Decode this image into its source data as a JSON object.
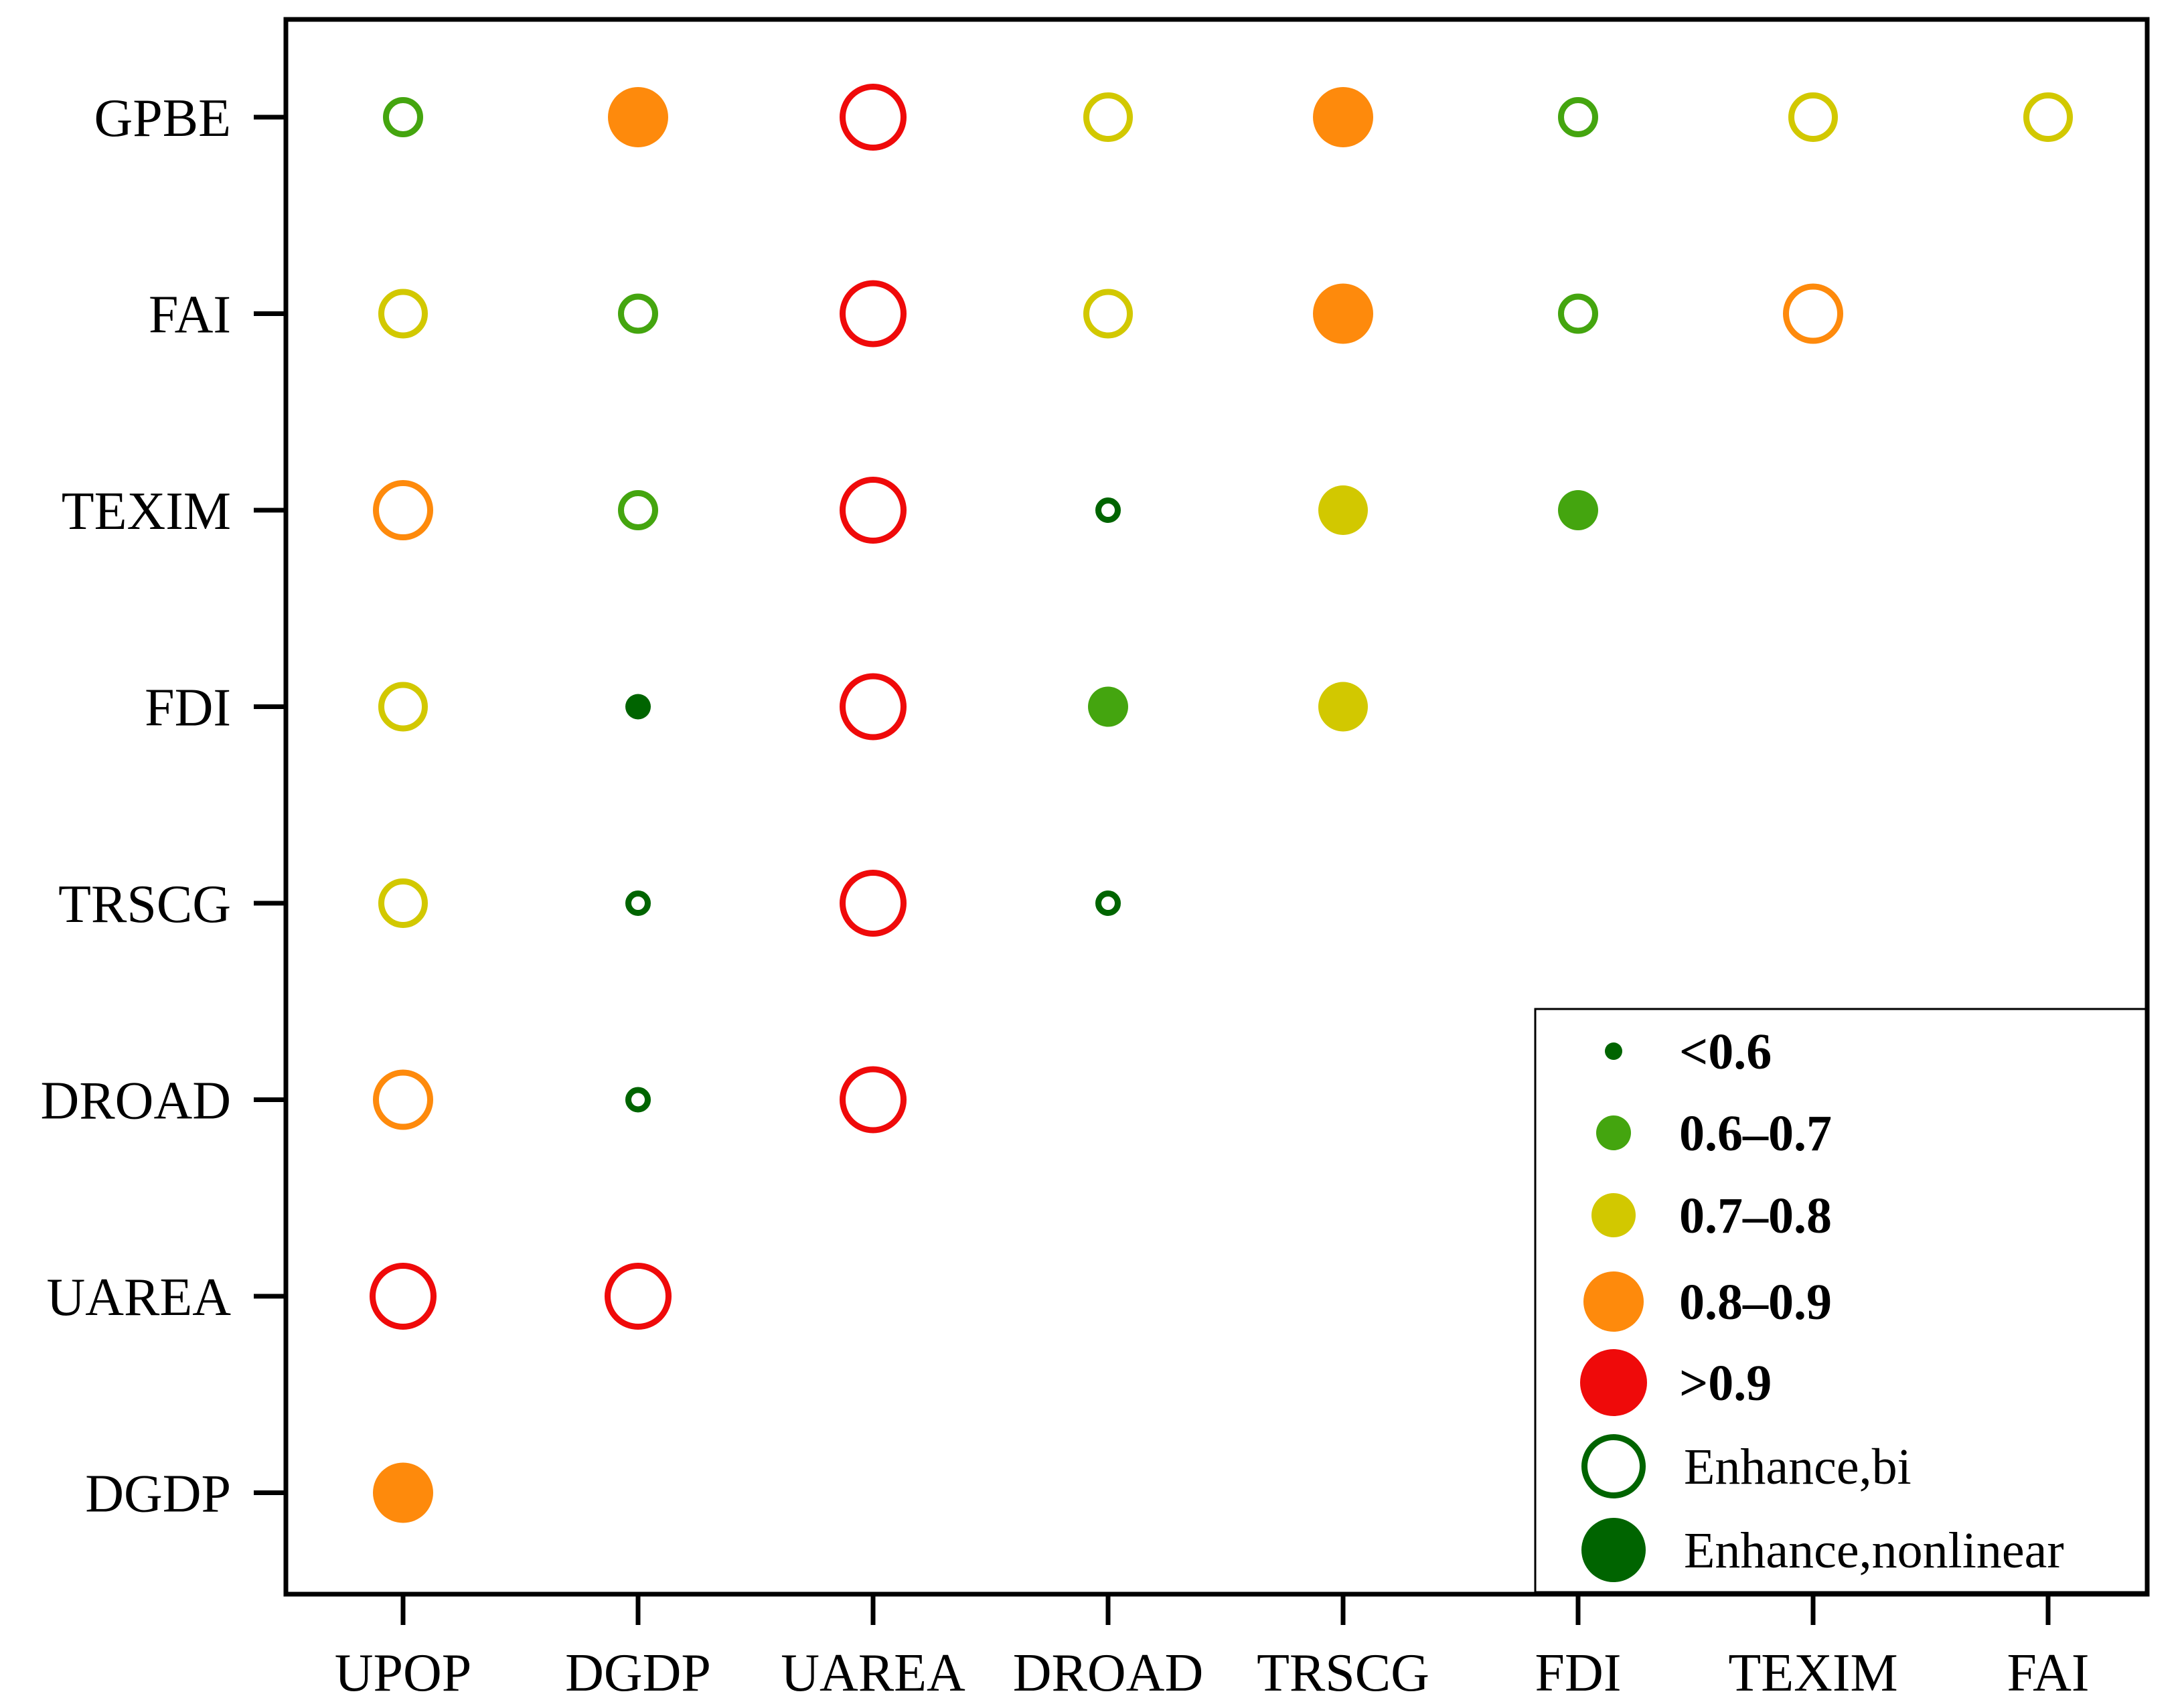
{
  "chart_data": {
    "type": "scatter",
    "x_categories": [
      "UPOP",
      "DGDP",
      "UAREA",
      "DROAD",
      "TRSCG",
      "FDI",
      "TEXIM",
      "FAI"
    ],
    "y_categories": [
      "GPBE",
      "FAI",
      "TEXIM",
      "FDI",
      "TRSCG",
      "DROAD",
      "UAREA",
      "DGDP"
    ],
    "legend": [
      {
        "label": "<0.6",
        "class": "<0.6",
        "color": "#006400",
        "type": "size"
      },
      {
        "label": "0.6–0.7",
        "class": "0.6–0.7",
        "color": "#44a50f",
        "type": "size"
      },
      {
        "label": "0.7–0.8",
        "class": "0.7–0.8",
        "color": "#d2c800",
        "type": "size"
      },
      {
        "label": "0.8–0.9",
        "class": "0.8–0.9",
        "color": "#fe8a0c",
        "type": "size"
      },
      {
        "label": ">0.9",
        "class": ">0.9",
        "color": "#ef0a0a",
        "type": "size"
      },
      {
        "label": "Enhance,bi",
        "type": "hollow",
        "color": "#006400"
      },
      {
        "label": "Enhance,nonlinear",
        "type": "filled",
        "color": "#006400"
      }
    ],
    "points": [
      {
        "x": "UPOP",
        "y": "GPBE",
        "class": "0.6–0.7",
        "enhance": "bi"
      },
      {
        "x": "DGDP",
        "y": "GPBE",
        "class": "0.8–0.9",
        "enhance": "nonlinear"
      },
      {
        "x": "UAREA",
        "y": "GPBE",
        "class": ">0.9",
        "enhance": "bi"
      },
      {
        "x": "DROAD",
        "y": "GPBE",
        "class": "0.7–0.8",
        "enhance": "bi"
      },
      {
        "x": "TRSCG",
        "y": "GPBE",
        "class": "0.8–0.9",
        "enhance": "nonlinear"
      },
      {
        "x": "FDI",
        "y": "GPBE",
        "class": "0.6–0.7",
        "enhance": "bi"
      },
      {
        "x": "TEXIM",
        "y": "GPBE",
        "class": "0.7–0.8",
        "enhance": "bi"
      },
      {
        "x": "FAI",
        "y": "GPBE",
        "class": "0.7–0.8",
        "enhance": "bi"
      },
      {
        "x": "UPOP",
        "y": "FAI",
        "class": "0.7–0.8",
        "enhance": "bi"
      },
      {
        "x": "DGDP",
        "y": "FAI",
        "class": "0.6–0.7",
        "enhance": "bi"
      },
      {
        "x": "UAREA",
        "y": "FAI",
        "class": ">0.9",
        "enhance": "bi"
      },
      {
        "x": "DROAD",
        "y": "FAI",
        "class": "0.7–0.8",
        "enhance": "bi"
      },
      {
        "x": "TRSCG",
        "y": "FAI",
        "class": "0.8–0.9",
        "enhance": "nonlinear"
      },
      {
        "x": "FDI",
        "y": "FAI",
        "class": "0.6–0.7",
        "enhance": "bi"
      },
      {
        "x": "TEXIM",
        "y": "FAI",
        "class": "0.8–0.9",
        "enhance": "bi"
      },
      {
        "x": "UPOP",
        "y": "TEXIM",
        "class": "0.8–0.9",
        "enhance": "bi"
      },
      {
        "x": "DGDP",
        "y": "TEXIM",
        "class": "0.6–0.7",
        "enhance": "bi"
      },
      {
        "x": "UAREA",
        "y": "TEXIM",
        "class": ">0.9",
        "enhance": "bi"
      },
      {
        "x": "DROAD",
        "y": "TEXIM",
        "class": "<0.6",
        "enhance": "bi"
      },
      {
        "x": "TRSCG",
        "y": "TEXIM",
        "class": "0.7–0.8",
        "enhance": "nonlinear"
      },
      {
        "x": "FDI",
        "y": "TEXIM",
        "class": "0.6–0.7",
        "enhance": "nonlinear"
      },
      {
        "x": "UPOP",
        "y": "FDI",
        "class": "0.7–0.8",
        "enhance": "bi"
      },
      {
        "x": "DGDP",
        "y": "FDI",
        "class": "<0.6",
        "enhance": "nonlinear"
      },
      {
        "x": "UAREA",
        "y": "FDI",
        "class": ">0.9",
        "enhance": "bi"
      },
      {
        "x": "DROAD",
        "y": "FDI",
        "class": "0.6–0.7",
        "enhance": "nonlinear"
      },
      {
        "x": "TRSCG",
        "y": "FDI",
        "class": "0.7–0.8",
        "enhance": "nonlinear"
      },
      {
        "x": "UPOP",
        "y": "TRSCG",
        "class": "0.7–0.8",
        "enhance": "bi"
      },
      {
        "x": "DGDP",
        "y": "TRSCG",
        "class": "<0.6",
        "enhance": "bi"
      },
      {
        "x": "UAREA",
        "y": "TRSCG",
        "class": ">0.9",
        "enhance": "bi"
      },
      {
        "x": "DROAD",
        "y": "TRSCG",
        "class": "<0.6",
        "enhance": "bi"
      },
      {
        "x": "UPOP",
        "y": "DROAD",
        "class": "0.8–0.9",
        "enhance": "bi"
      },
      {
        "x": "DGDP",
        "y": "DROAD",
        "class": "<0.6",
        "enhance": "bi"
      },
      {
        "x": "UAREA",
        "y": "DROAD",
        "class": ">0.9",
        "enhance": "bi"
      },
      {
        "x": "UPOP",
        "y": "UAREA",
        "class": ">0.9",
        "enhance": "bi"
      },
      {
        "x": "DGDP",
        "y": "UAREA",
        "class": ">0.9",
        "enhance": "bi"
      },
      {
        "x": "UPOP",
        "y": "DGDP",
        "class": "0.8–0.9",
        "enhance": "nonlinear"
      }
    ]
  }
}
